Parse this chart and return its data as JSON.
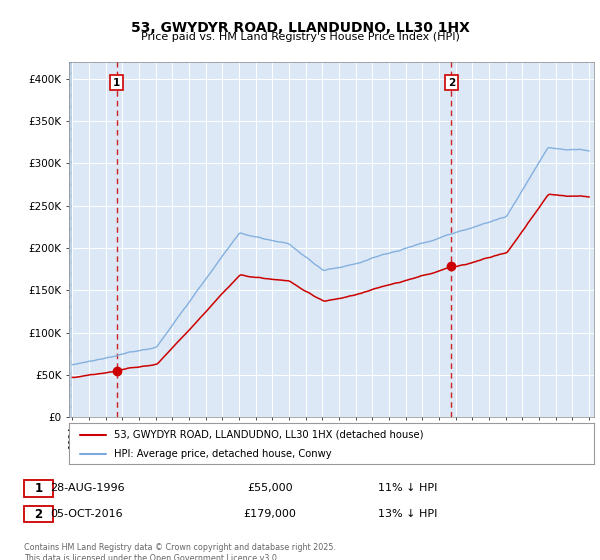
{
  "title1": "53, GWYDYR ROAD, LLANDUDNO, LL30 1HX",
  "title2": "Price paid vs. HM Land Registry's House Price Index (HPI)",
  "red_label": "53, GWYDYR ROAD, LLANDUDNO, LL30 1HX (detached house)",
  "blue_label": "HPI: Average price, detached house, Conwy",
  "transaction1": {
    "num": "1",
    "date": "28-AUG-1996",
    "price": "£55,000",
    "note": "11% ↓ HPI"
  },
  "transaction2": {
    "num": "2",
    "date": "05-OCT-2016",
    "price": "£179,000",
    "note": "13% ↓ HPI"
  },
  "footer": "Contains HM Land Registry data © Crown copyright and database right 2025.\nThis data is licensed under the Open Government Licence v3.0.",
  "sale1_year": 1996.65,
  "sale1_price": 55000,
  "sale2_year": 2016.75,
  "sale2_price": 179000,
  "ylim": [
    0,
    420000
  ],
  "xlim_start": 1993.8,
  "xlim_end": 2025.3,
  "background_color": "#ffffff",
  "plot_bg": "#dce8f5",
  "hatch_color": "#c0d4e8",
  "red_color": "#cc0000",
  "blue_color": "#7aaadd"
}
